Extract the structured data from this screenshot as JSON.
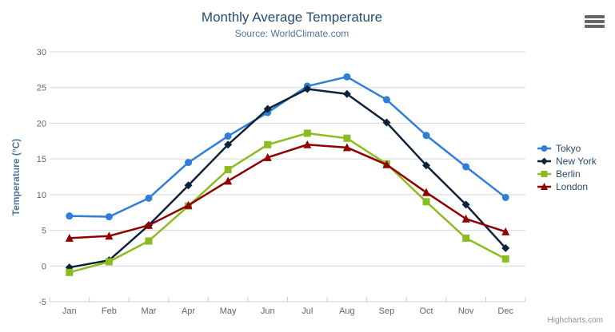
{
  "chart": {
    "credits_label": "Highcharts.com",
    "export_menu_tooltip": "Chart context menu",
    "colors": {
      "title": "#274b6d",
      "subtitle": "#4d759e",
      "axis_title": "#4d759e",
      "axis_labels": "#666666",
      "legend_text": "#274b6d",
      "grid_line": "#d8d8d8",
      "axis_line": "#c0d0e0",
      "credits": "#909090",
      "menu_icon": "#666666"
    }
  },
  "chart_data": {
    "type": "line",
    "title": "Monthly Average Temperature",
    "subtitle": "Source: WorldClimate.com",
    "xlabel": "",
    "ylabel": "Temperature (°C)",
    "categories": [
      "Jan",
      "Feb",
      "Mar",
      "Apr",
      "May",
      "Jun",
      "Jul",
      "Aug",
      "Sep",
      "Oct",
      "Nov",
      "Dec"
    ],
    "ylim": [
      -5,
      30
    ],
    "ytick_interval": 5,
    "grid": true,
    "legend_position": "right",
    "series": [
      {
        "name": "Tokyo",
        "color": "#2f7ed8",
        "marker": "circle",
        "values": [
          7.0,
          6.9,
          9.5,
          14.5,
          18.2,
          21.5,
          25.2,
          26.5,
          23.3,
          18.3,
          13.9,
          9.6
        ]
      },
      {
        "name": "New York",
        "color": "#0d233a",
        "marker": "diamond",
        "values": [
          -0.2,
          0.8,
          5.7,
          11.3,
          17.0,
          22.0,
          24.8,
          24.1,
          20.1,
          14.1,
          8.6,
          2.5
        ]
      },
      {
        "name": "Berlin",
        "color": "#8bbc21",
        "marker": "square",
        "values": [
          -0.9,
          0.6,
          3.5,
          8.4,
          13.5,
          17.0,
          18.6,
          17.9,
          14.3,
          9.0,
          3.9,
          1.0
        ]
      },
      {
        "name": "London",
        "color": "#910000",
        "marker": "triangle",
        "values": [
          3.9,
          4.2,
          5.7,
          8.5,
          11.9,
          15.2,
          17.0,
          16.6,
          14.2,
          10.3,
          6.6,
          4.8
        ]
      }
    ]
  }
}
